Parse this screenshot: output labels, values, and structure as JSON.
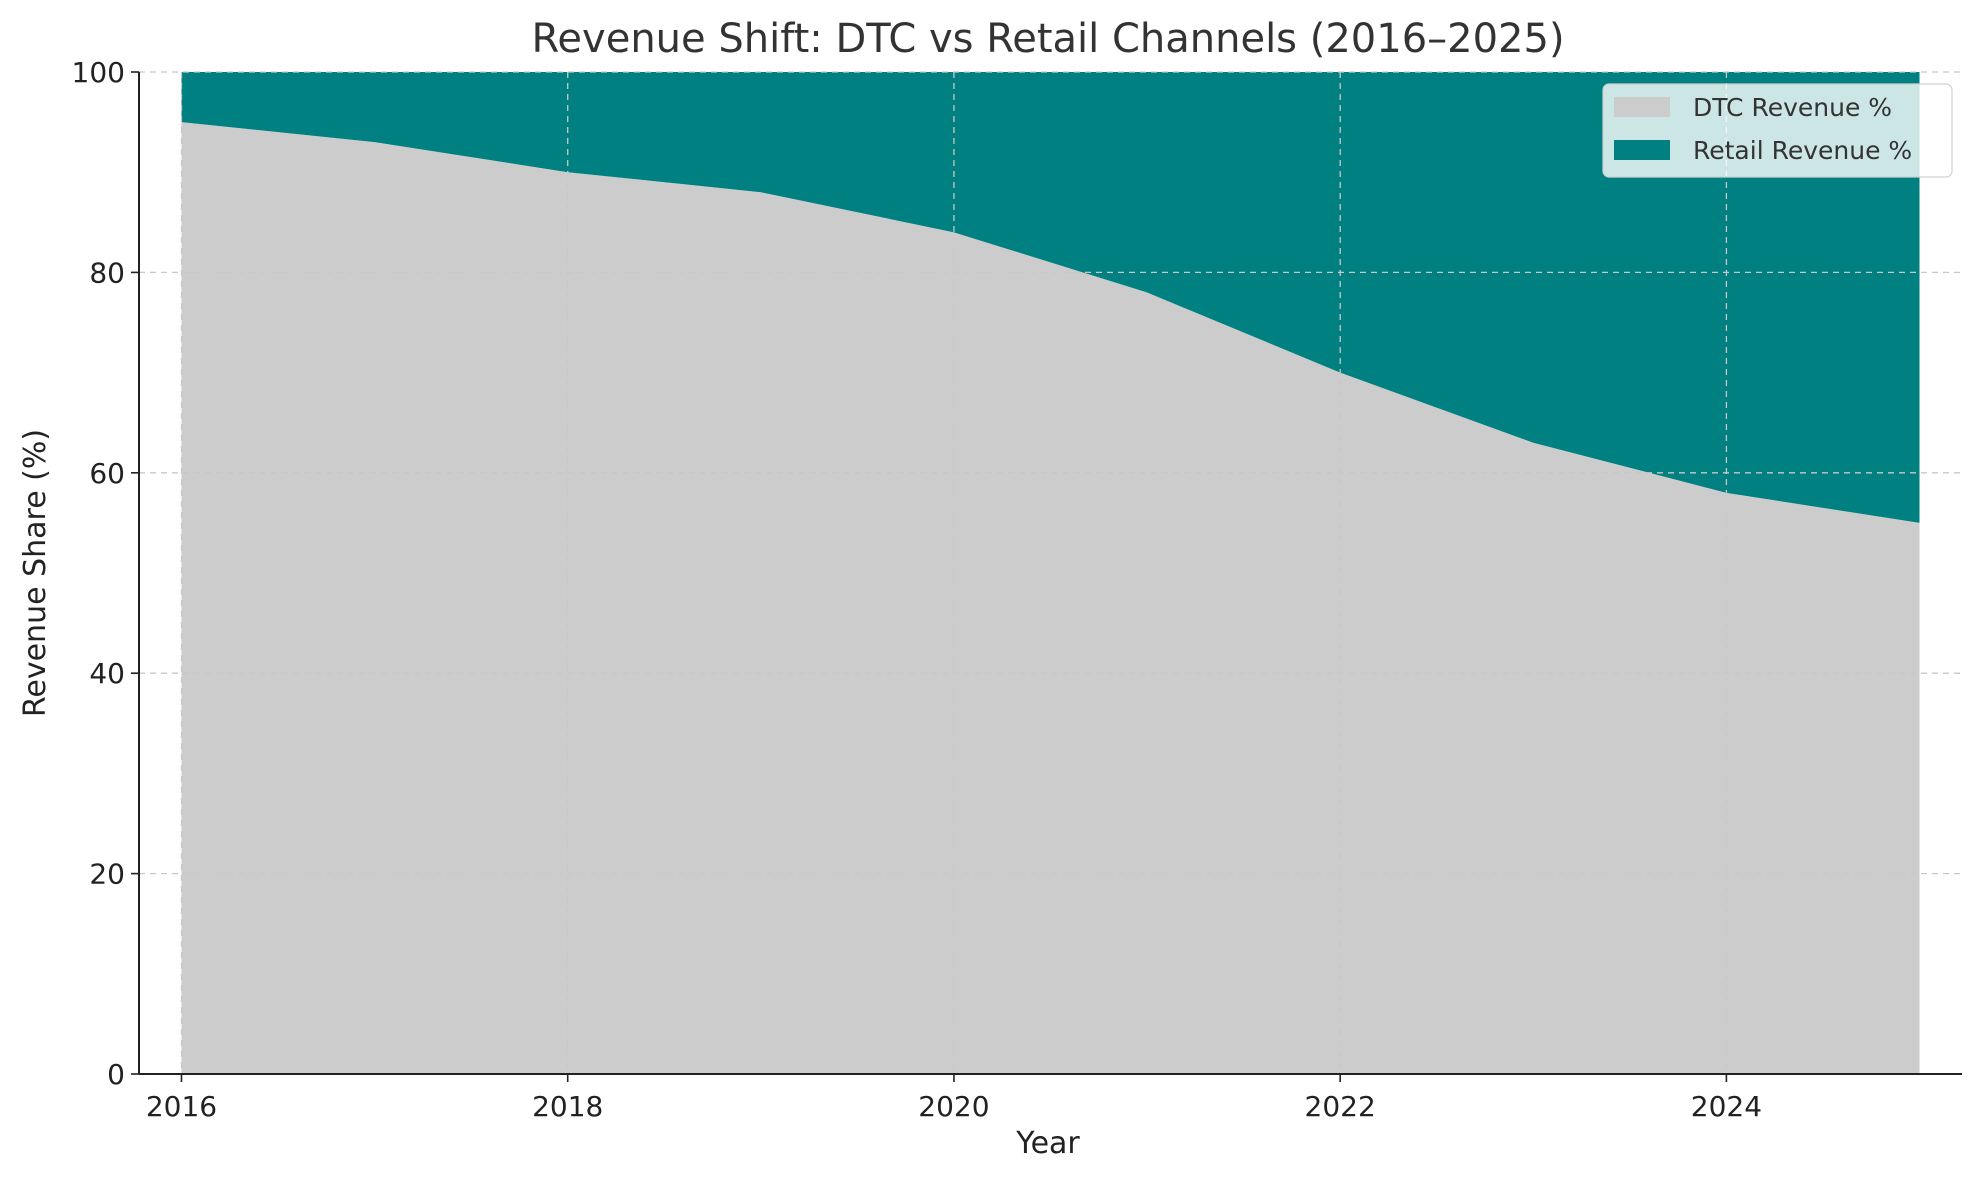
{
  "chart_data": {
    "type": "area",
    "stacked": true,
    "title": "Revenue Shift: DTC vs Retail Channels (2016–2025)",
    "xlabel": "Year",
    "ylabel": "Revenue Share (%)",
    "x": [
      2016,
      2017,
      2018,
      2019,
      2020,
      2021,
      2022,
      2023,
      2024,
      2025
    ],
    "series": [
      {
        "name": "DTC Revenue %",
        "values": [
          95,
          93,
          90,
          88,
          84,
          78,
          70,
          63,
          58,
          55
        ],
        "color": "#cccccc"
      },
      {
        "name": "Retail Revenue %",
        "values": [
          5,
          7,
          10,
          12,
          16,
          22,
          30,
          37,
          42,
          45
        ],
        "color": "#008080"
      }
    ],
    "xlim": [
      2015.78,
      2025.22
    ],
    "ylim": [
      0,
      100
    ],
    "xticks": [
      2016,
      2018,
      2020,
      2022,
      2024
    ],
    "xtick_labels": [
      "2016",
      "2018",
      "2020",
      "2022",
      "2024"
    ],
    "yticks": [
      0,
      20,
      40,
      60,
      80,
      100
    ],
    "ytick_labels": [
      "0",
      "20",
      "40",
      "60",
      "80",
      "100"
    ],
    "grid": true,
    "legend_position": "top-right"
  }
}
